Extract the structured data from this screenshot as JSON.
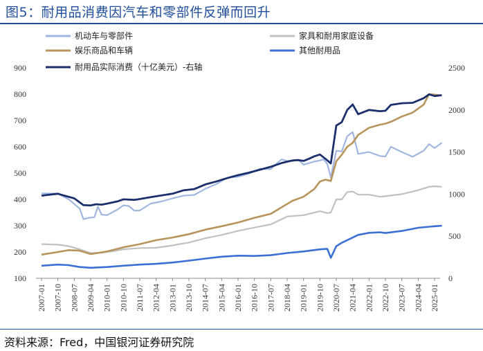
{
  "header": {
    "title": "图5：耐用品消费因汽车和零部件反弹而回升"
  },
  "footer": {
    "source": "资料来源：Fred，中国银河证券研究院"
  },
  "chart_data": {
    "type": "line",
    "title": "图5：耐用品消费因汽车和零部件反弹而回升",
    "x_ticks": [
      "2007-01",
      "2007-10",
      "2008-07",
      "2009-04",
      "2010-01",
      "2010-10",
      "2011-07",
      "2012-04",
      "2013-01",
      "2013-10",
      "2014-07",
      "2015-04",
      "2016-01",
      "2016-10",
      "2017-07",
      "2018-04",
      "2019-01",
      "2019-10",
      "2020-07",
      "2021-04",
      "2022-01",
      "2022-10",
      "2023-07",
      "2024-04",
      "2025-01"
    ],
    "y_left": {
      "min": 100,
      "max": 900,
      "ticks": [
        100,
        200,
        300,
        400,
        500,
        600,
        700,
        800,
        900
      ]
    },
    "y_right": {
      "min": 0,
      "max": 2500,
      "ticks": [
        0,
        500,
        1000,
        1500,
        2000,
        2500
      ]
    },
    "legend_position": "top",
    "grid": false,
    "series": [
      {
        "name": "机动车与零部件",
        "color": "#9fb6e0",
        "axis": "left",
        "points": [
          [
            "2007-01",
            423
          ],
          [
            "2007-10",
            422
          ],
          [
            "2008-04",
            400
          ],
          [
            "2008-10",
            365
          ],
          [
            "2008-12",
            325
          ],
          [
            "2009-03",
            330
          ],
          [
            "2009-06",
            332
          ],
          [
            "2009-08",
            372
          ],
          [
            "2009-10",
            342
          ],
          [
            "2010-01",
            340
          ],
          [
            "2010-07",
            362
          ],
          [
            "2010-10",
            377
          ],
          [
            "2011-01",
            375
          ],
          [
            "2011-04",
            357
          ],
          [
            "2011-07",
            358
          ],
          [
            "2012-01",
            384
          ],
          [
            "2012-07",
            392
          ],
          [
            "2013-01",
            404
          ],
          [
            "2013-07",
            414
          ],
          [
            "2014-01",
            417
          ],
          [
            "2014-07",
            440
          ],
          [
            "2015-01",
            458
          ],
          [
            "2015-07",
            482
          ],
          [
            "2016-01",
            486
          ],
          [
            "2016-07",
            498
          ],
          [
            "2017-01",
            516
          ],
          [
            "2017-07",
            515
          ],
          [
            "2017-10",
            535
          ],
          [
            "2018-01",
            552
          ],
          [
            "2018-04",
            546
          ],
          [
            "2018-07",
            546
          ],
          [
            "2018-10",
            551
          ],
          [
            "2019-01",
            532
          ],
          [
            "2019-04",
            538
          ],
          [
            "2019-07",
            544
          ],
          [
            "2019-10",
            548
          ],
          [
            "2019-12",
            552
          ],
          [
            "2020-02",
            535
          ],
          [
            "2020-04",
            484
          ],
          [
            "2020-07",
            585
          ],
          [
            "2020-10",
            582
          ],
          [
            "2021-01",
            640
          ],
          [
            "2021-04",
            656
          ],
          [
            "2021-07",
            573
          ],
          [
            "2022-01",
            580
          ],
          [
            "2022-07",
            565
          ],
          [
            "2022-10",
            563
          ],
          [
            "2023-01",
            600
          ],
          [
            "2023-07",
            580
          ],
          [
            "2024-01",
            562
          ],
          [
            "2024-07",
            585
          ],
          [
            "2024-10",
            610
          ],
          [
            "2025-01",
            595
          ],
          [
            "2025-05",
            615
          ]
        ]
      },
      {
        "name": "家具和耐用家庭设备",
        "color": "#c0c0c0",
        "axis": "left",
        "points": [
          [
            "2007-01",
            230
          ],
          [
            "2007-10",
            228
          ],
          [
            "2008-04",
            222
          ],
          [
            "2008-10",
            210
          ],
          [
            "2009-04",
            196
          ],
          [
            "2009-10",
            197
          ],
          [
            "2010-04",
            203
          ],
          [
            "2010-10",
            210
          ],
          [
            "2011-07",
            215
          ],
          [
            "2012-04",
            216
          ],
          [
            "2013-01",
            225
          ],
          [
            "2013-10",
            236
          ],
          [
            "2014-07",
            252
          ],
          [
            "2015-04",
            265
          ],
          [
            "2016-01",
            280
          ],
          [
            "2016-10",
            293
          ],
          [
            "2017-07",
            305
          ],
          [
            "2018-04",
            335
          ],
          [
            "2019-01",
            340
          ],
          [
            "2019-10",
            355
          ],
          [
            "2020-02",
            348
          ],
          [
            "2020-04",
            350
          ],
          [
            "2020-07",
            400
          ],
          [
            "2020-10",
            400
          ],
          [
            "2021-01",
            428
          ],
          [
            "2021-04",
            430
          ],
          [
            "2021-07",
            418
          ],
          [
            "2022-01",
            418
          ],
          [
            "2022-07",
            410
          ],
          [
            "2022-10",
            412
          ],
          [
            "2023-07",
            420
          ],
          [
            "2024-04",
            435
          ],
          [
            "2024-10",
            448
          ],
          [
            "2025-01",
            450
          ],
          [
            "2025-05",
            448
          ]
        ]
      },
      {
        "name": "娱乐商品和车辆",
        "color": "#b8935a",
        "axis": "left",
        "points": [
          [
            "2007-01",
            190
          ],
          [
            "2007-10",
            200
          ],
          [
            "2008-04",
            207
          ],
          [
            "2008-10",
            205
          ],
          [
            "2009-04",
            192
          ],
          [
            "2010-01",
            202
          ],
          [
            "2010-10",
            218
          ],
          [
            "2011-07",
            230
          ],
          [
            "2012-04",
            245
          ],
          [
            "2013-01",
            255
          ],
          [
            "2013-10",
            268
          ],
          [
            "2014-07",
            285
          ],
          [
            "2015-04",
            298
          ],
          [
            "2016-01",
            312
          ],
          [
            "2016-10",
            330
          ],
          [
            "2017-07",
            345
          ],
          [
            "2018-01",
            370
          ],
          [
            "2018-07",
            395
          ],
          [
            "2019-01",
            410
          ],
          [
            "2019-07",
            440
          ],
          [
            "2019-10",
            468
          ],
          [
            "2020-01",
            475
          ],
          [
            "2020-04",
            470
          ],
          [
            "2020-07",
            545
          ],
          [
            "2020-10",
            570
          ],
          [
            "2021-01",
            600
          ],
          [
            "2021-04",
            615
          ],
          [
            "2021-07",
            645
          ],
          [
            "2022-01",
            672
          ],
          [
            "2022-07",
            684
          ],
          [
            "2022-10",
            688
          ],
          [
            "2023-01",
            695
          ],
          [
            "2023-07",
            715
          ],
          [
            "2024-01",
            730
          ],
          [
            "2024-07",
            760
          ],
          [
            "2024-10",
            800
          ],
          [
            "2025-01",
            798
          ],
          [
            "2025-05",
            795
          ]
        ]
      },
      {
        "name": "其他耐用品",
        "color": "#3b6fd6",
        "axis": "left",
        "points": [
          [
            "2007-01",
            148
          ],
          [
            "2007-10",
            152
          ],
          [
            "2008-04",
            150
          ],
          [
            "2008-10",
            143
          ],
          [
            "2009-04",
            140
          ],
          [
            "2010-01",
            143
          ],
          [
            "2010-10",
            148
          ],
          [
            "2011-07",
            152
          ],
          [
            "2012-04",
            155
          ],
          [
            "2013-01",
            160
          ],
          [
            "2013-10",
            167
          ],
          [
            "2014-07",
            175
          ],
          [
            "2015-04",
            182
          ],
          [
            "2016-01",
            186
          ],
          [
            "2016-10",
            185
          ],
          [
            "2017-07",
            188
          ],
          [
            "2018-04",
            196
          ],
          [
            "2019-01",
            202
          ],
          [
            "2019-10",
            210
          ],
          [
            "2020-02",
            212
          ],
          [
            "2020-04",
            178
          ],
          [
            "2020-07",
            222
          ],
          [
            "2020-10",
            235
          ],
          [
            "2021-04",
            255
          ],
          [
            "2021-07",
            265
          ],
          [
            "2022-01",
            273
          ],
          [
            "2022-07",
            275
          ],
          [
            "2022-10",
            272
          ],
          [
            "2023-07",
            280
          ],
          [
            "2024-04",
            292
          ],
          [
            "2024-10",
            296
          ],
          [
            "2025-01",
            298
          ],
          [
            "2025-05",
            300
          ]
        ]
      },
      {
        "name": "耐用品实际消费（十亿美元）-右轴",
        "color": "#1a2f6b",
        "axis": "right",
        "points": [
          [
            "2007-01",
            982
          ],
          [
            "2007-10",
            1005
          ],
          [
            "2008-01",
            985
          ],
          [
            "2008-07",
            950
          ],
          [
            "2008-12",
            870
          ],
          [
            "2009-04",
            865
          ],
          [
            "2009-07",
            880
          ],
          [
            "2009-10",
            875
          ],
          [
            "2010-01",
            887
          ],
          [
            "2010-07",
            915
          ],
          [
            "2010-10",
            938
          ],
          [
            "2011-04",
            932
          ],
          [
            "2011-07",
            942
          ],
          [
            "2012-01",
            965
          ],
          [
            "2012-07",
            985
          ],
          [
            "2013-01",
            1005
          ],
          [
            "2013-07",
            1045
          ],
          [
            "2014-01",
            1060
          ],
          [
            "2014-07",
            1115
          ],
          [
            "2015-01",
            1150
          ],
          [
            "2015-07",
            1190
          ],
          [
            "2016-01",
            1225
          ],
          [
            "2016-07",
            1255
          ],
          [
            "2017-01",
            1290
          ],
          [
            "2017-07",
            1325
          ],
          [
            "2018-01",
            1370
          ],
          [
            "2018-07",
            1400
          ],
          [
            "2018-10",
            1405
          ],
          [
            "2019-01",
            1395
          ],
          [
            "2019-04",
            1420
          ],
          [
            "2019-07",
            1450
          ],
          [
            "2019-10",
            1470
          ],
          [
            "2020-01",
            1420
          ],
          [
            "2020-04",
            1365
          ],
          [
            "2020-07",
            1815
          ],
          [
            "2020-10",
            1855
          ],
          [
            "2021-01",
            2000
          ],
          [
            "2021-04",
            2065
          ],
          [
            "2021-07",
            1950
          ],
          [
            "2022-01",
            2000
          ],
          [
            "2022-07",
            1985
          ],
          [
            "2022-10",
            1990
          ],
          [
            "2023-01",
            2060
          ],
          [
            "2023-07",
            2080
          ],
          [
            "2024-01",
            2085
          ],
          [
            "2024-07",
            2140
          ],
          [
            "2024-10",
            2185
          ],
          [
            "2025-01",
            2165
          ],
          [
            "2025-05",
            2175
          ]
        ]
      }
    ]
  }
}
